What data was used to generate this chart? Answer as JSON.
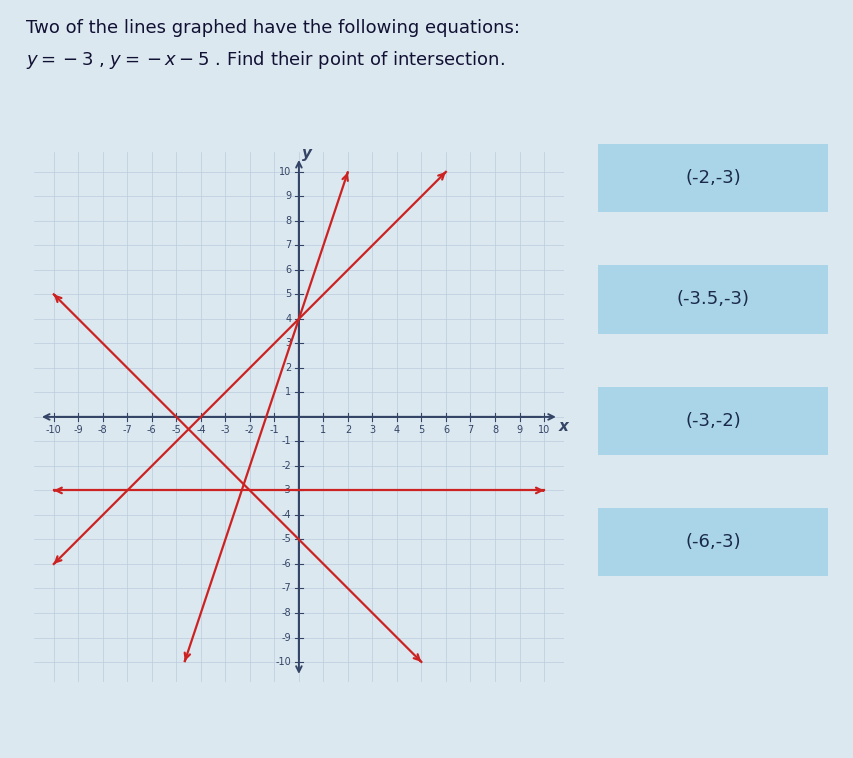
{
  "title_line1": "Two of the lines graphed have the following equations:",
  "bg_color": "#dce8f0",
  "graph_bg": "#ffffff",
  "graph_border": "#8899aa",
  "grid_color": "#bbccdd",
  "axis_color": "#334466",
  "line_color": "#cc2222",
  "line_width": 1.6,
  "xmin": -10,
  "xmax": 10,
  "ymin": -10,
  "ymax": 10,
  "lines": [
    {
      "slope": 0,
      "intercept": -3
    },
    {
      "slope": -1,
      "intercept": -5
    },
    {
      "slope": 1,
      "intercept": 4
    },
    {
      "slope": 3,
      "intercept": 4
    }
  ],
  "choices": [
    "(-2,-3)",
    "(-3.5,-3)",
    "(-3,-2)",
    "(-6,-3)"
  ],
  "choice_bg": "#aad4e8",
  "choice_text_color": "#1a2a4a",
  "choice_fontsize": 13,
  "tick_fontsize": 7,
  "axis_label_fontsize": 11
}
